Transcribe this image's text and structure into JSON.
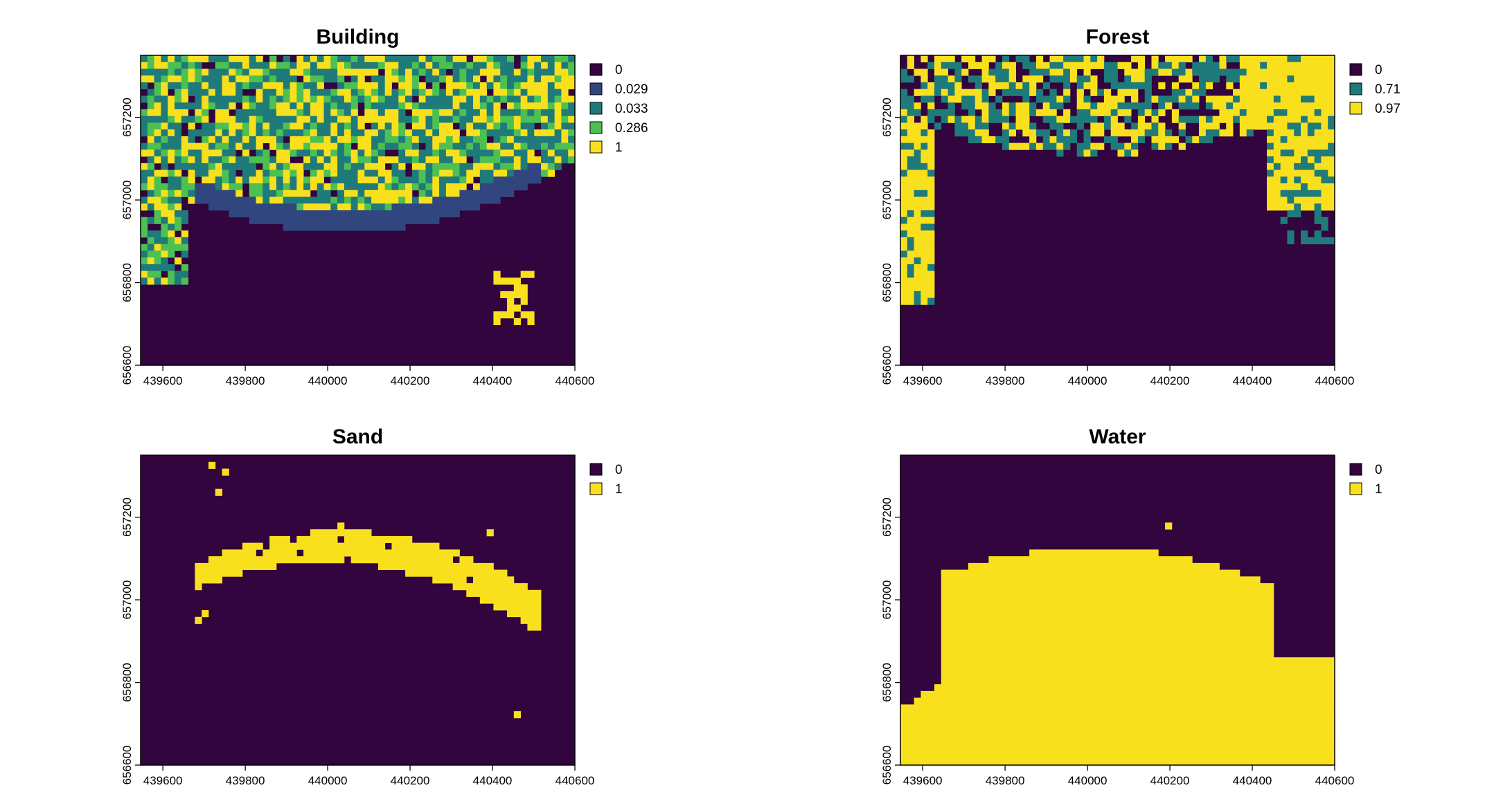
{
  "chart_data": [
    {
      "type": "heatmap",
      "title": "Building",
      "xlim": [
        439546,
        440600
      ],
      "ylim": [
        656600,
        657350
      ],
      "x_ticks": [
        "439600",
        "439800",
        "440000",
        "440200",
        "440400",
        "440600"
      ],
      "y_ticks": [
        "656600",
        "656800",
        "657000",
        "657200"
      ],
      "legend": {
        "placement": "right",
        "entries": [
          "0",
          "0.029",
          "0.033",
          "0.286",
          "1"
        ],
        "colors": [
          "#32053f",
          "#31467e",
          "#1f7a7a",
          "#4cc052",
          "#f9e01d"
        ]
      },
      "description_regions": {
        "background": "0",
        "arc_band": "0.029",
        "upper_area_mix": [
          "0.033",
          "0.286",
          "1"
        ]
      }
    },
    {
      "type": "heatmap",
      "title": "Forest",
      "xlim": [
        439546,
        440600
      ],
      "ylim": [
        656600,
        657350
      ],
      "x_ticks": [
        "439600",
        "439800",
        "440000",
        "440200",
        "440400",
        "440600"
      ],
      "y_ticks": [
        "656600",
        "656800",
        "657000",
        "657200"
      ],
      "legend": {
        "placement": "right",
        "entries": [
          "0",
          "0.71",
          "0.97"
        ],
        "colors": [
          "#32053f",
          "#1f7a7a",
          "#f9e01d"
        ]
      }
    },
    {
      "type": "heatmap",
      "title": "Sand",
      "xlim": [
        439546,
        440600
      ],
      "ylim": [
        656600,
        657350
      ],
      "x_ticks": [
        "439600",
        "439800",
        "440000",
        "440200",
        "440400",
        "440600"
      ],
      "y_ticks": [
        "656600",
        "656800",
        "657000",
        "657200"
      ],
      "legend": {
        "placement": "right",
        "entries": [
          "0",
          "1"
        ],
        "colors": [
          "#32053f",
          "#f9e01d"
        ]
      }
    },
    {
      "type": "heatmap",
      "title": "Water",
      "xlim": [
        439546,
        440600
      ],
      "ylim": [
        656600,
        657350
      ],
      "x_ticks": [
        "439600",
        "439800",
        "440000",
        "440200",
        "440400",
        "440600"
      ],
      "y_ticks": [
        "656600",
        "656800",
        "657000",
        "657200"
      ],
      "legend": {
        "placement": "right",
        "entries": [
          "0",
          "1"
        ],
        "colors": [
          "#32053f",
          "#f9e01d"
        ]
      }
    }
  ]
}
